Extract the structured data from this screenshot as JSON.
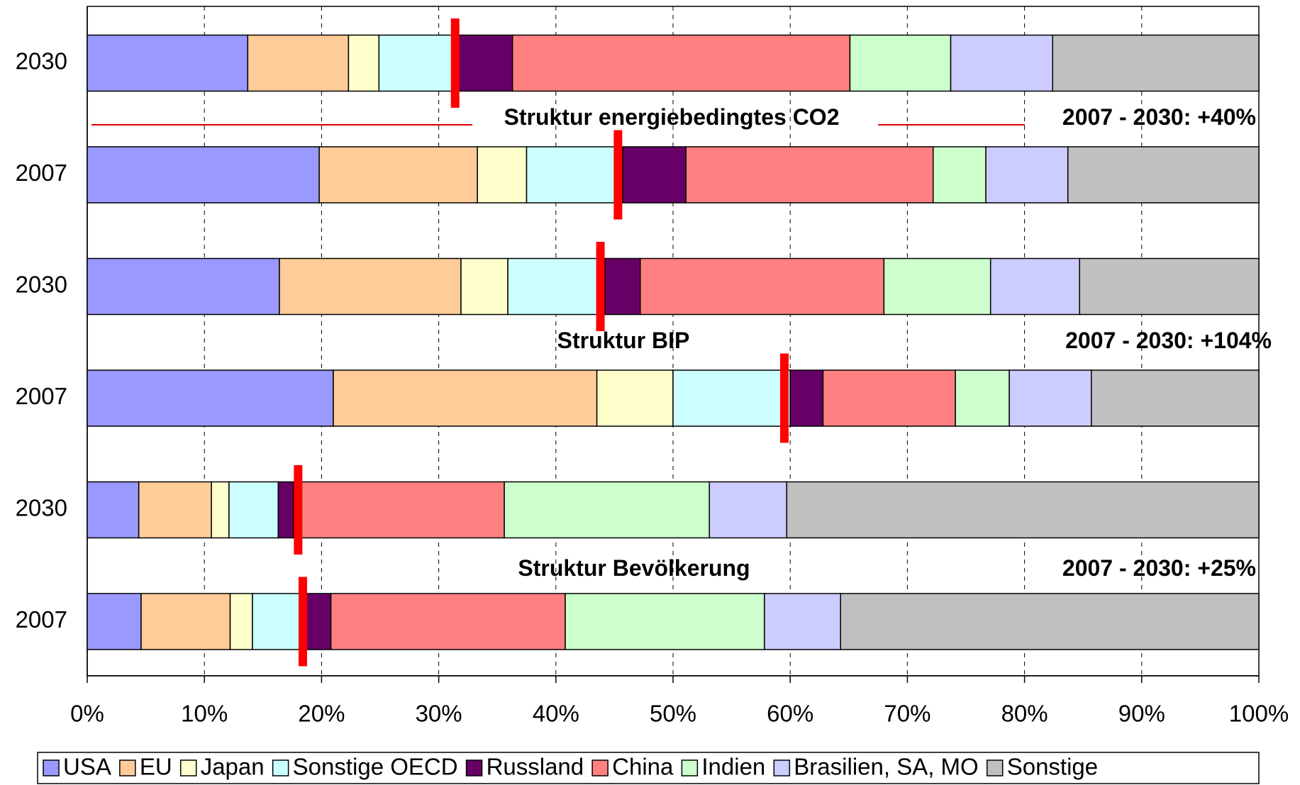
{
  "chart_data": {
    "type": "stacked_barh",
    "categories": [
      "2030",
      "2007",
      "2030",
      "2007",
      "2030",
      "2007"
    ],
    "series": [
      {
        "name": "USA",
        "color": "#9999ff",
        "values": [
          13.7,
          19.8,
          16.4,
          21.0,
          4.4,
          4.6
        ]
      },
      {
        "name": "EU",
        "color": "#ffcc99",
        "values": [
          8.6,
          13.5,
          15.5,
          22.5,
          6.2,
          7.6
        ]
      },
      {
        "name": "Japan",
        "color": "#ffffcc",
        "values": [
          2.6,
          4.2,
          4.0,
          6.5,
          1.5,
          1.9
        ]
      },
      {
        "name": "Sonstige OECD",
        "color": "#ccffff",
        "values": [
          6.7,
          8.2,
          8.3,
          10.0,
          4.2,
          4.6
        ]
      },
      {
        "name": "Russland",
        "color": "#660066",
        "values": [
          4.7,
          5.4,
          3.0,
          2.8,
          1.3,
          2.1
        ]
      },
      {
        "name": "China",
        "color": "#ff8080",
        "values": [
          28.8,
          21.1,
          20.8,
          11.3,
          18.0,
          20.0
        ]
      },
      {
        "name": "Indien",
        "color": "#ccffcc",
        "values": [
          8.6,
          4.5,
          9.1,
          4.6,
          17.5,
          17.0
        ]
      },
      {
        "name": "Brasilien, SA, MO",
        "color": "#ccccff",
        "values": [
          8.7,
          7.0,
          7.6,
          7.0,
          6.6,
          6.5
        ]
      },
      {
        "name": "Sonstige",
        "color": "#c0c0c0",
        "values": [
          17.6,
          16.3,
          15.3,
          14.3,
          40.3,
          35.7
        ]
      }
    ],
    "markers": {
      "color": "#ff0000",
      "values": [
        31.4,
        45.3,
        43.8,
        59.5,
        18.0,
        18.4
      ]
    },
    "annotations": [
      {
        "title": "Struktur energiebedingtes CO2",
        "growth": "2007 - 2030: +40%"
      },
      {
        "title": "Struktur BIP",
        "growth": "2007 - 2030: +104%"
      },
      {
        "title": "Struktur Bevölkerung",
        "growth": "2007 - 2030: +25%"
      }
    ],
    "xlim": [
      0,
      100
    ],
    "xticks": [
      {
        "value": 0,
        "label": "0%"
      },
      {
        "value": 10,
        "label": "10%"
      },
      {
        "value": 20,
        "label": "20%"
      },
      {
        "value": 30,
        "label": "30%"
      },
      {
        "value": 40,
        "label": "40%"
      },
      {
        "value": 50,
        "label": "50%"
      },
      {
        "value": 60,
        "label": "60%"
      },
      {
        "value": 70,
        "label": "70%"
      },
      {
        "value": 80,
        "label": "80%"
      },
      {
        "value": 90,
        "label": "90%"
      },
      {
        "value": 100,
        "label": "100%"
      }
    ],
    "grid": true,
    "legend": "bottom"
  }
}
